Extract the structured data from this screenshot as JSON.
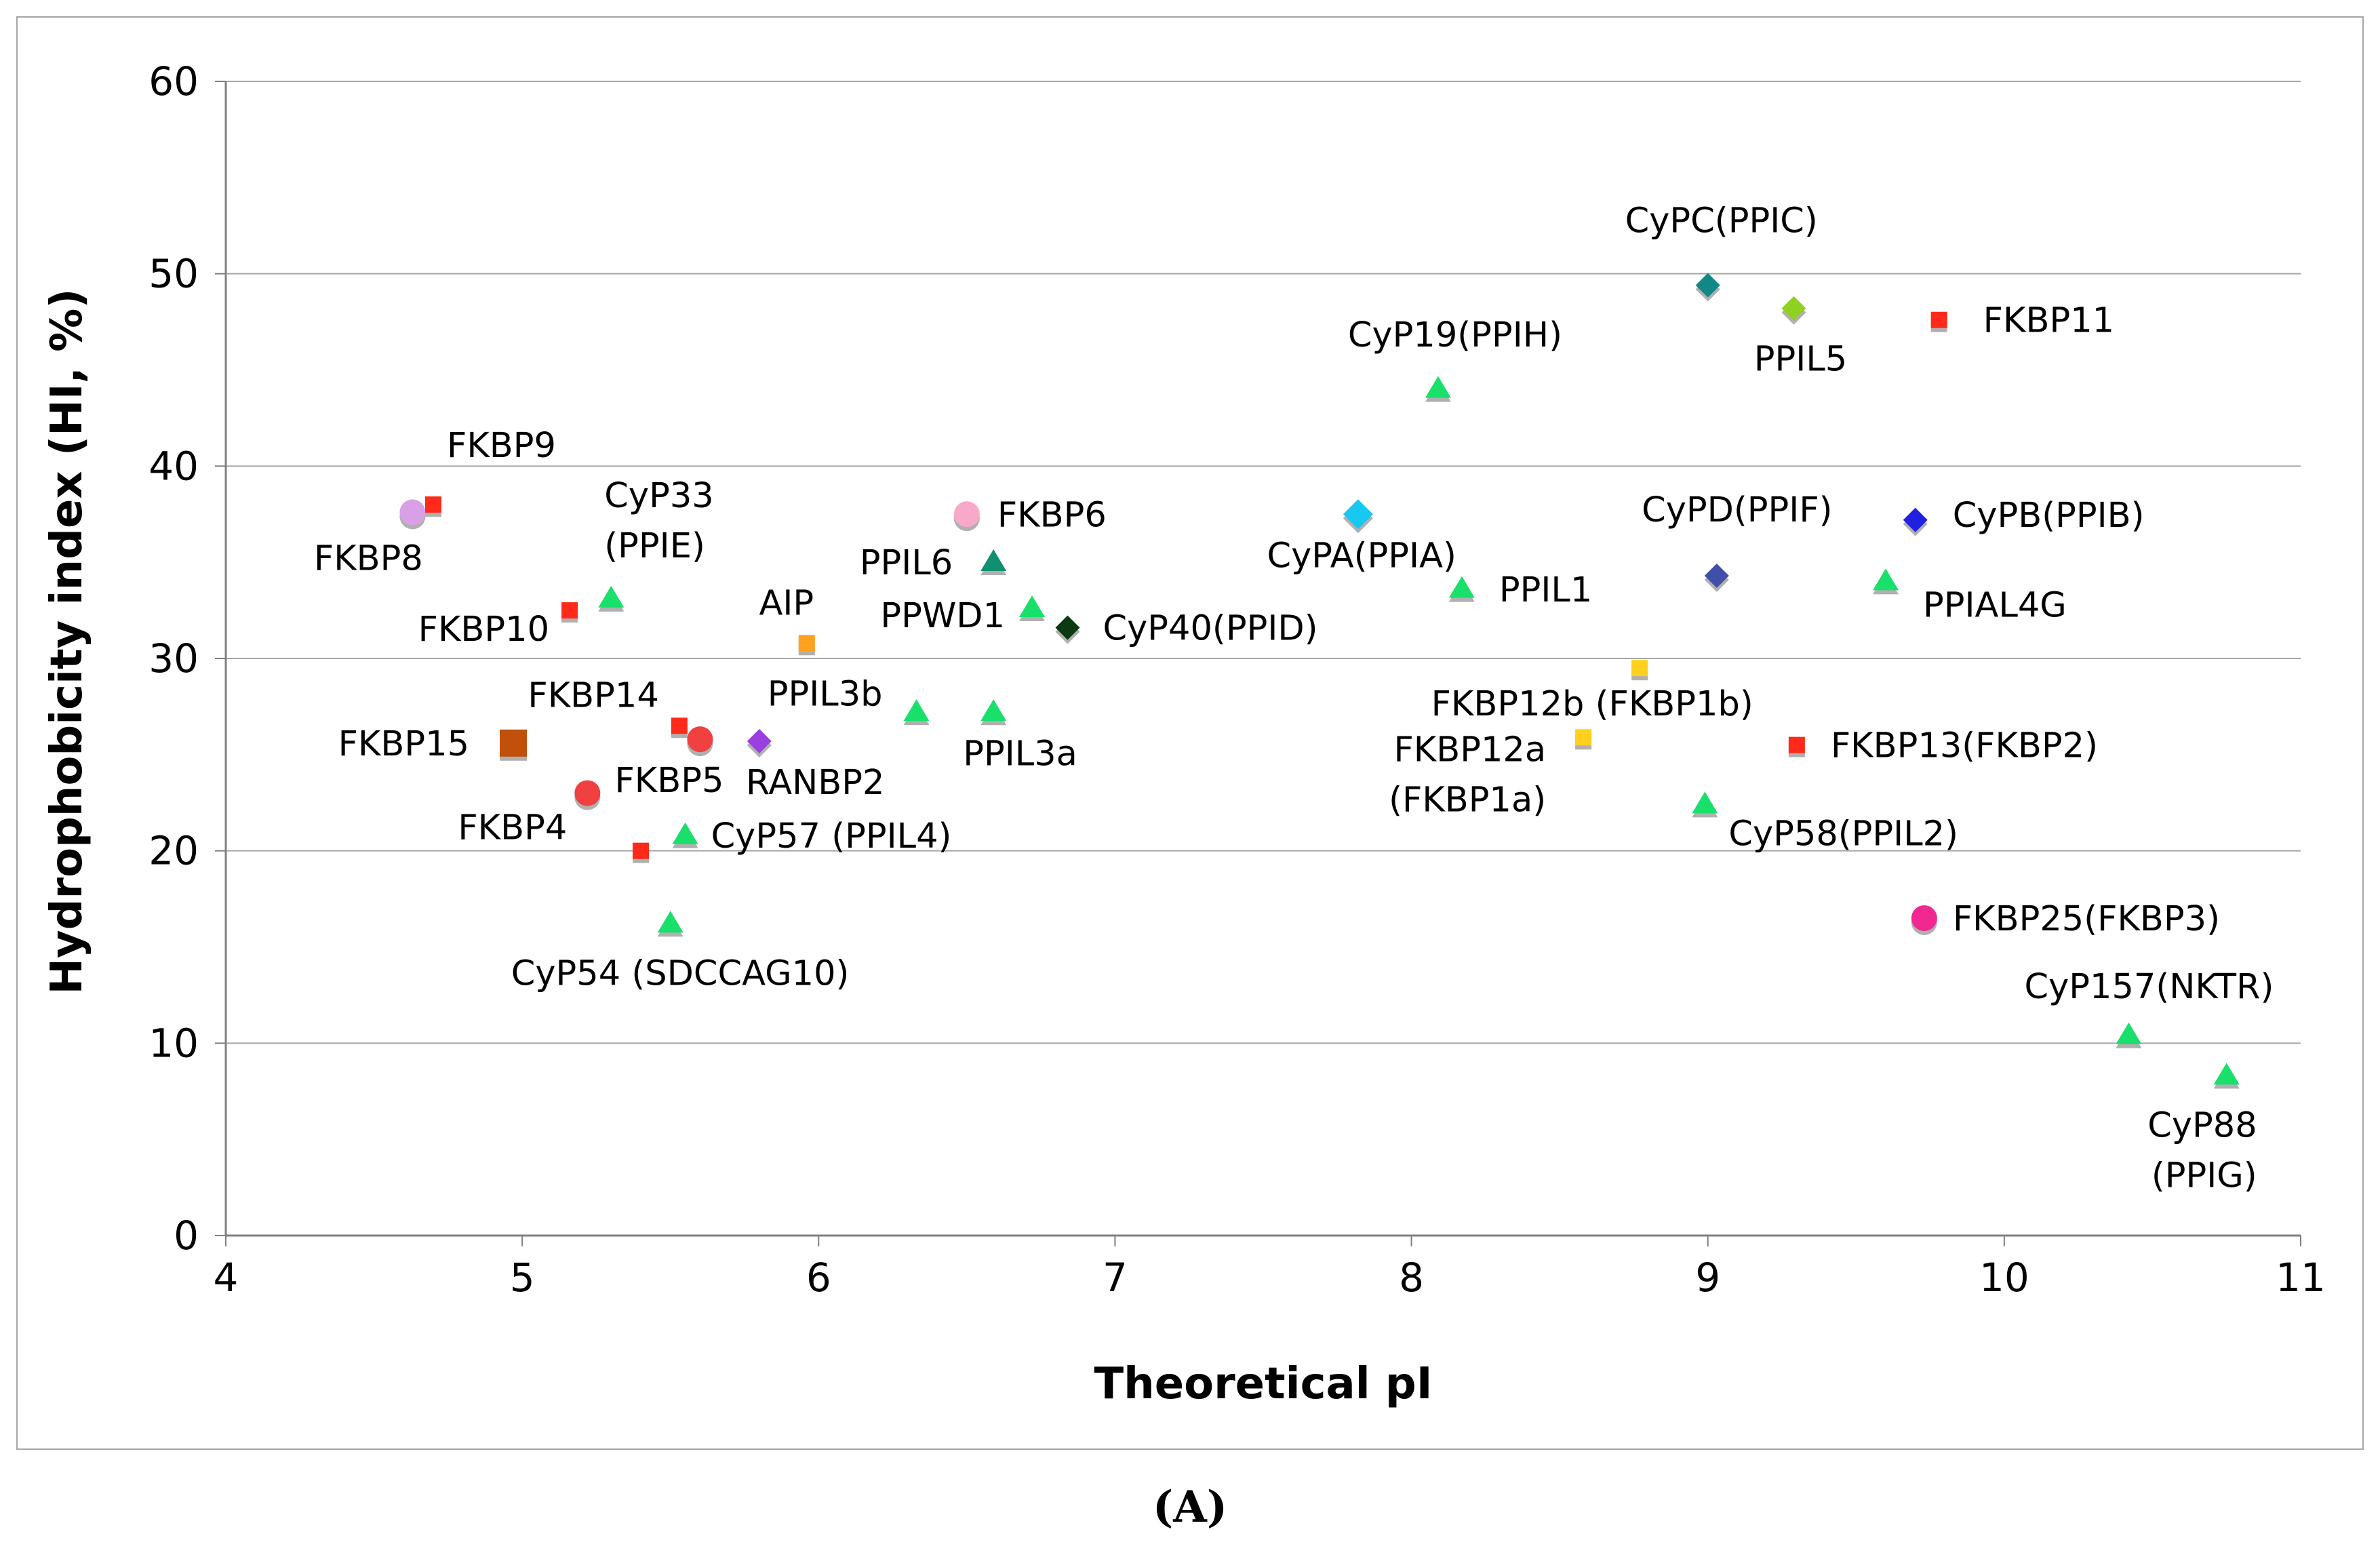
{
  "caption": "(A)",
  "chart_data": {
    "type": "scatter",
    "xlabel": "Theoretical pI",
    "ylabel": "Hydrophobicity index (HI, %)",
    "xlim": [
      4,
      11
    ],
    "ylim": [
      0,
      60
    ],
    "x_ticks": [
      "4",
      "5",
      "6",
      "7",
      "8",
      "9",
      "10",
      "11"
    ],
    "y_ticks": [
      "0",
      "10",
      "20",
      "30",
      "40",
      "50",
      "60"
    ],
    "grid": "horizontal",
    "points": [
      {
        "x": 4.63,
        "y": 37.6,
        "marker": "circle",
        "color": "#d9a0e8",
        "label": [
          "FKBP8"
        ],
        "anchor": "middle",
        "dx": -65,
        "dy": 85
      },
      {
        "x": 4.7,
        "y": 38.0,
        "marker": "square",
        "color": "#ff2a1a",
        "label": [
          "FKBP9"
        ],
        "anchor": "start",
        "dx": 20,
        "dy": -70
      },
      {
        "x": 4.97,
        "y": 25.6,
        "marker": "square-large",
        "color": "#c0500a",
        "label": [
          "FKBP15"
        ],
        "anchor": "end",
        "dx": -65,
        "dy": 18
      },
      {
        "x": 5.16,
        "y": 32.5,
        "marker": "square",
        "color": "#ff2a1a",
        "label": [
          "FKBP10"
        ],
        "anchor": "end",
        "dx": -30,
        "dy": 45
      },
      {
        "x": 5.22,
        "y": 23.0,
        "marker": "circle",
        "color": "#f04040",
        "label": [
          "FKBP4"
        ],
        "anchor": "end",
        "dx": -30,
        "dy": 68
      },
      {
        "x": 5.3,
        "y": 33.1,
        "marker": "triangle",
        "color": "#18e06a",
        "label": [
          "CyP33",
          "(PPIE)"
        ],
        "anchor": "start",
        "dx": -10,
        "dy": -135
      },
      {
        "x": 5.4,
        "y": 20.0,
        "marker": "square",
        "color": "#ff2a1a",
        "label": [],
        "anchor": "start",
        "dx": 0,
        "dy": 0
      },
      {
        "x": 5.5,
        "y": 16.2,
        "marker": "triangle",
        "color": "#18e06a",
        "label": [
          "CyP54 (SDCCAG10)"
        ],
        "anchor": "start",
        "dx": -235,
        "dy": 90
      },
      {
        "x": 5.53,
        "y": 26.5,
        "marker": "square",
        "color": "#ff2a1a",
        "label": [
          "FKBP14"
        ],
        "anchor": "end",
        "dx": -30,
        "dy": -28
      },
      {
        "x": 5.55,
        "y": 20.8,
        "marker": "triangle",
        "color": "#18e06a",
        "label": [
          "CyP57 (PPIL4)"
        ],
        "anchor": "start",
        "dx": 38,
        "dy": 18
      },
      {
        "x": 5.6,
        "y": 25.8,
        "marker": "circle",
        "color": "#f04040",
        "label": [
          "FKBP5"
        ],
        "anchor": "end",
        "dx": 35,
        "dy": 78
      },
      {
        "x": 5.8,
        "y": 25.7,
        "marker": "diamond",
        "color": "#9a40e0",
        "label": [
          "RANBP2"
        ],
        "anchor": "start",
        "dx": -20,
        "dy": 78
      },
      {
        "x": 5.96,
        "y": 30.8,
        "marker": "square",
        "color": "#ffa020",
        "label": [
          "AIP"
        ],
        "anchor": "middle",
        "dx": -30,
        "dy": -42
      },
      {
        "x": 6.33,
        "y": 27.2,
        "marker": "triangle",
        "color": "#18e06a",
        "label": [
          "PPIL3b"
        ],
        "anchor": "end",
        "dx": -50,
        "dy": -10
      },
      {
        "x": 6.5,
        "y": 37.5,
        "marker": "circle",
        "color": "#f8a8c8",
        "label": [
          "FKBP6"
        ],
        "anchor": "start",
        "dx": 45,
        "dy": 18
      },
      {
        "x": 6.59,
        "y": 35.0,
        "marker": "triangle",
        "color": "#109070",
        "label": [
          "PPIL6"
        ],
        "anchor": "end",
        "dx": -60,
        "dy": 18
      },
      {
        "x": 6.59,
        "y": 27.2,
        "marker": "triangle",
        "color": "#18e06a",
        "label": [
          "PPIL3a"
        ],
        "anchor": "start",
        "dx": -45,
        "dy": 78
      },
      {
        "x": 6.72,
        "y": 32.6,
        "marker": "triangle",
        "color": "#18e06a",
        "label": [
          "PPWD1"
        ],
        "anchor": "end",
        "dx": -40,
        "dy": 28
      },
      {
        "x": 6.84,
        "y": 31.6,
        "marker": "diamond",
        "color": "#0a3a10",
        "label": [
          "CyP40(PPID)"
        ],
        "anchor": "start",
        "dx": 52,
        "dy": 18
      },
      {
        "x": 7.82,
        "y": 37.5,
        "marker": "diamond-large",
        "color": "#18c8f0",
        "label": [
          "CyPA(PPIA)"
        ],
        "anchor": "end",
        "dx": 145,
        "dy": 78
      },
      {
        "x": 8.09,
        "y": 44.0,
        "marker": "triangle",
        "color": "#18e06a",
        "label": [
          "CyP19(PPIH)"
        ],
        "anchor": "middle",
        "dx": 25,
        "dy": -63
      },
      {
        "x": 8.17,
        "y": 33.6,
        "marker": "triangle",
        "color": "#18e06a",
        "label": [
          "PPIL1"
        ],
        "anchor": "start",
        "dx": 55,
        "dy": 18
      },
      {
        "x": 8.58,
        "y": 25.9,
        "marker": "square",
        "color": "#ffd020",
        "label": [
          "FKBP12a",
          "(FKBP1a)"
        ],
        "anchor": "end",
        "dx": -55,
        "dy": 35
      },
      {
        "x": 8.77,
        "y": 29.5,
        "marker": "square",
        "color": "#ffd020",
        "label": [
          "FKBP12b (FKBP1b)"
        ],
        "anchor": "middle",
        "dx": -70,
        "dy": 70
      },
      {
        "x": 8.99,
        "y": 22.4,
        "marker": "triangle",
        "color": "#18e06a",
        "label": [
          "CyP58(PPIL2)"
        ],
        "anchor": "start",
        "dx": 35,
        "dy": 60
      },
      {
        "x": 9.0,
        "y": 49.4,
        "marker": "diamond",
        "color": "#108888",
        "label": [
          "CyPC(PPIC)"
        ],
        "anchor": "middle",
        "dx": 20,
        "dy": -78
      },
      {
        "x": 9.03,
        "y": 34.3,
        "marker": "diamond",
        "color": "#4050a8",
        "label": [
          "CyPD(PPIF)"
        ],
        "anchor": "middle",
        "dx": 30,
        "dy": -80
      },
      {
        "x": 9.29,
        "y": 48.2,
        "marker": "diamond",
        "color": "#90d020",
        "label": [
          "PPIL5"
        ],
        "anchor": "middle",
        "dx": 10,
        "dy": 92
      },
      {
        "x": 9.3,
        "y": 25.5,
        "marker": "square",
        "color": "#ff2a1a",
        "label": [
          "FKBP13(FKBP2)"
        ],
        "anchor": "start",
        "dx": 50,
        "dy": 18
      },
      {
        "x": 9.6,
        "y": 34.0,
        "marker": "triangle",
        "color": "#18e06a",
        "label": [
          "PPIAL4G"
        ],
        "anchor": "start",
        "dx": 55,
        "dy": 52
      },
      {
        "x": 9.7,
        "y": 37.2,
        "marker": "diamond",
        "color": "#2020e0",
        "label": [
          "CyPB(PPIB)"
        ],
        "anchor": "start",
        "dx": 55,
        "dy": 10
      },
      {
        "x": 9.73,
        "y": 16.5,
        "marker": "circle",
        "color": "#f02890",
        "label": [
          "FKBP25(FKBP3)"
        ],
        "anchor": "start",
        "dx": 42,
        "dy": 18
      },
      {
        "x": 9.78,
        "y": 47.6,
        "marker": "square",
        "color": "#ff2a1a",
        "label": [
          "FKBP11"
        ],
        "anchor": "start",
        "dx": 65,
        "dy": 18
      },
      {
        "x": 10.42,
        "y": 10.4,
        "marker": "triangle",
        "color": "#18e06a",
        "label": [
          "CyP157(NKTR)"
        ],
        "anchor": "middle",
        "dx": 30,
        "dy": -55
      },
      {
        "x": 10.75,
        "y": 8.3,
        "marker": "triangle",
        "color": "#18e06a",
        "label": [
          "CyP88",
          "(PPIG)"
        ],
        "anchor": "end",
        "dx": 45,
        "dy": 90
      }
    ]
  }
}
